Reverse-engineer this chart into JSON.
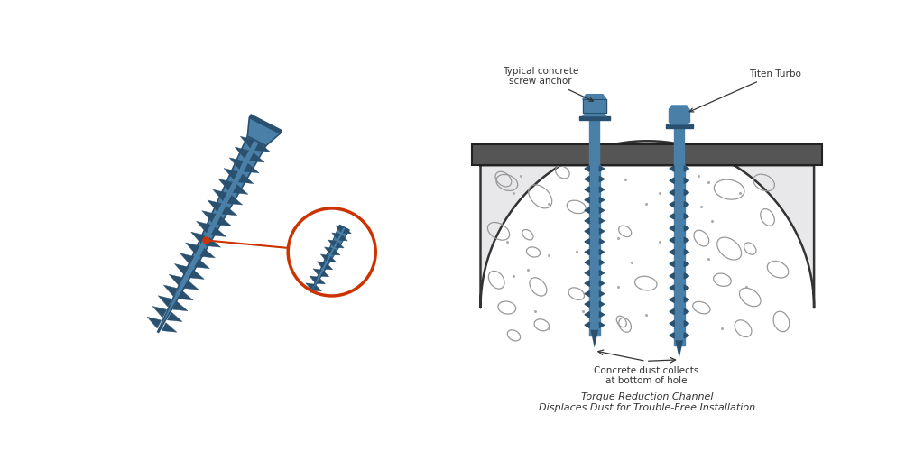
{
  "bg_color": "#ffffff",
  "concrete_fill": "#e8e8eb",
  "concrete_outline": "#333333",
  "plate_color": "#555555",
  "screw_blue": "#4a80a8",
  "screw_dark_blue": "#2a5070",
  "screw_orange": "#d4622a",
  "annotation_color": "#333333",
  "circle_color": "#cc3300",
  "label_typical": "Typical concrete\nscrew anchor",
  "label_titen": "Titen Turbo",
  "label_dust": "Concrete dust collects\nat bottom of hole",
  "label_torque": "Torque Reduction Channel\nDisplaces Dust for Trouble-Free Installation",
  "fig_width": 10.24,
  "fig_height": 5.0
}
